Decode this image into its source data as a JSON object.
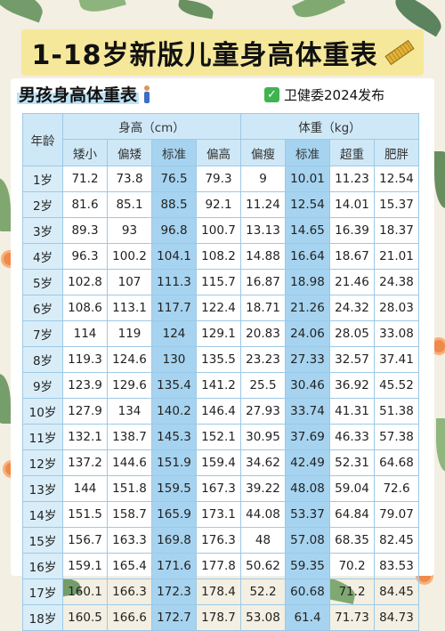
{
  "title": "1-18岁新版儿童身高体重表",
  "subtitle": "男孩身高体重表",
  "badge": "卫健委2024发布",
  "icons": {
    "title": "ruler-icon",
    "subtitle": "boy-icon",
    "badge": "check-icon"
  },
  "colors": {
    "title_bg": "#f6e89a",
    "header_bg": "#cfe8f7",
    "standard_col": "#a6d3ef",
    "border": "#9cc9e6"
  },
  "table": {
    "age_header": "年龄",
    "height_group": "身高（cm）",
    "weight_group": "体重（kg）",
    "height_columns": [
      "矮小",
      "偏矮",
      "标准",
      "偏高"
    ],
    "weight_columns": [
      "偏瘦",
      "标准",
      "超重",
      "肥胖"
    ],
    "rows": [
      {
        "age": "1岁",
        "h": [
          "71.2",
          "73.8",
          "76.5",
          "79.3"
        ],
        "w": [
          "9",
          "10.01",
          "11.23",
          "12.54"
        ]
      },
      {
        "age": "2岁",
        "h": [
          "81.6",
          "85.1",
          "88.5",
          "92.1"
        ],
        "w": [
          "11.24",
          "12.54",
          "14.01",
          "15.37"
        ]
      },
      {
        "age": "3岁",
        "h": [
          "89.3",
          "93",
          "96.8",
          "100.7"
        ],
        "w": [
          "13.13",
          "14.65",
          "16.39",
          "18.37"
        ]
      },
      {
        "age": "4岁",
        "h": [
          "96.3",
          "100.2",
          "104.1",
          "108.2"
        ],
        "w": [
          "14.88",
          "16.64",
          "18.67",
          "21.01"
        ]
      },
      {
        "age": "5岁",
        "h": [
          "102.8",
          "107",
          "111.3",
          "115.7"
        ],
        "w": [
          "16.87",
          "18.98",
          "21.46",
          "24.38"
        ]
      },
      {
        "age": "6岁",
        "h": [
          "108.6",
          "113.1",
          "117.7",
          "122.4"
        ],
        "w": [
          "18.71",
          "21.26",
          "24.32",
          "28.03"
        ]
      },
      {
        "age": "7岁",
        "h": [
          "114",
          "119",
          "124",
          "129.1"
        ],
        "w": [
          "20.83",
          "24.06",
          "28.05",
          "33.08"
        ]
      },
      {
        "age": "8岁",
        "h": [
          "119.3",
          "124.6",
          "130",
          "135.5"
        ],
        "w": [
          "23.23",
          "27.33",
          "32.57",
          "37.41"
        ]
      },
      {
        "age": "9岁",
        "h": [
          "123.9",
          "129.6",
          "135.4",
          "141.2"
        ],
        "w": [
          "25.5",
          "30.46",
          "36.92",
          "45.52"
        ]
      },
      {
        "age": "10岁",
        "h": [
          "127.9",
          "134",
          "140.2",
          "146.4"
        ],
        "w": [
          "27.93",
          "33.74",
          "41.31",
          "51.38"
        ]
      },
      {
        "age": "11岁",
        "h": [
          "132.1",
          "138.7",
          "145.3",
          "152.1"
        ],
        "w": [
          "30.95",
          "37.69",
          "46.33",
          "57.38"
        ]
      },
      {
        "age": "12岁",
        "h": [
          "137.2",
          "144.6",
          "151.9",
          "159.4"
        ],
        "w": [
          "34.62",
          "42.49",
          "52.31",
          "64.68"
        ]
      },
      {
        "age": "13岁",
        "h": [
          "144",
          "151.8",
          "159.5",
          "167.3"
        ],
        "w": [
          "39.22",
          "48.08",
          "59.04",
          "72.6"
        ]
      },
      {
        "age": "14岁",
        "h": [
          "151.5",
          "158.7",
          "165.9",
          "173.1"
        ],
        "w": [
          "44.08",
          "53.37",
          "64.84",
          "79.07"
        ]
      },
      {
        "age": "15岁",
        "h": [
          "156.7",
          "163.3",
          "169.8",
          "176.3"
        ],
        "w": [
          "48",
          "57.08",
          "68.35",
          "82.45"
        ]
      },
      {
        "age": "16岁",
        "h": [
          "159.1",
          "165.4",
          "171.6",
          "177.8"
        ],
        "w": [
          "50.62",
          "59.35",
          "70.2",
          "83.53"
        ]
      },
      {
        "age": "17岁",
        "h": [
          "160.1",
          "166.3",
          "172.3",
          "178.4"
        ],
        "w": [
          "52.2",
          "60.68",
          "71.2",
          "84.45"
        ]
      },
      {
        "age": "18岁",
        "h": [
          "160.5",
          "166.6",
          "172.7",
          "178.7"
        ],
        "w": [
          "53.08",
          "61.4",
          "71.73",
          "84.73"
        ]
      }
    ]
  }
}
